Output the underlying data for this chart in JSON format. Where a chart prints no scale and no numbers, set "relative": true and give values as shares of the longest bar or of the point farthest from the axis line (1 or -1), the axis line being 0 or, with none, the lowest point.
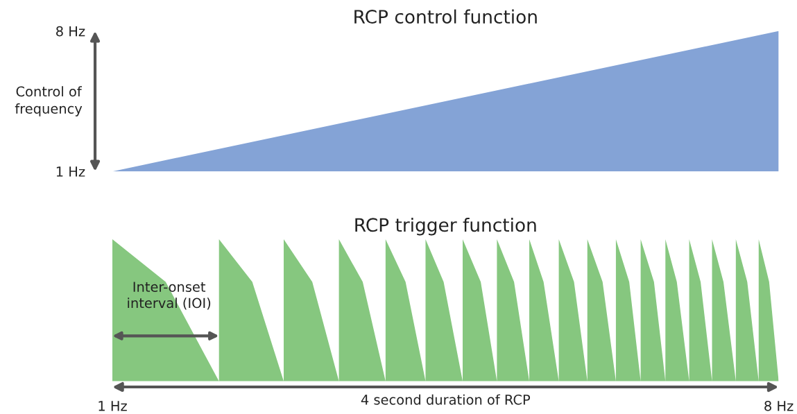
{
  "chart_data": [
    {
      "type": "area",
      "title": "RCP control function",
      "ylabel": "Control of frequency",
      "categories": [
        null,
        null
      ],
      "values": [
        1,
        8
      ],
      "color": "#84a3d6",
      "ylim": [
        1,
        8
      ],
      "yticks": [
        {
          "value": 1,
          "label": "1 Hz"
        },
        {
          "value": 8,
          "label": "8 Hz"
        }
      ],
      "tick_labels": "y"
    },
    {
      "type": "area",
      "title": "RCP trigger function",
      "xlabel": "4 second duration of RCP",
      "relative": true,
      "color": "#86c77f",
      "x": [
        1,
        1,
        1.56,
        2.12,
        2.12,
        2.47,
        2.8,
        2.8,
        3.1,
        3.38,
        3.38,
        3.63,
        3.87,
        3.87,
        4.08,
        4.29,
        4.29,
        4.48,
        4.68,
        4.68,
        4.87,
        5.04,
        5.04,
        5.22,
        5.38,
        5.38,
        5.53,
        5.69,
        5.69,
        5.85,
        5.99,
        5.99,
        6.15,
        6.29,
        6.29,
        6.43,
        6.55,
        6.55,
        6.69,
        6.81,
        6.81,
        6.93,
        7.06,
        7.06,
        7.18,
        7.3,
        7.3,
        7.42,
        7.55,
        7.55,
        7.67,
        7.79,
        7.79,
        7.9,
        8
      ],
      "values": [
        0,
        1,
        0.7,
        0,
        1,
        0.7,
        0,
        1,
        0.7,
        0,
        1,
        0.7,
        0,
        1,
        0.7,
        0,
        1,
        0.7,
        0,
        1,
        0.7,
        0,
        1,
        0.7,
        0,
        1,
        0.7,
        0,
        1,
        0.7,
        0,
        1,
        0.7,
        0,
        1,
        0.7,
        0,
        1,
        0.7,
        0,
        1,
        0.7,
        0,
        1,
        0.7,
        0,
        1,
        0.7,
        0,
        1,
        0.7,
        0,
        1,
        0.7,
        0
      ],
      "xlim": [
        1,
        8
      ],
      "xticks": [
        {
          "value": 1,
          "label": "1 Hz"
        },
        {
          "value": 8,
          "label": "8 Hz"
        }
      ],
      "tick_labels": "x",
      "annotations": [
        "Inter-onset interval (IOI)"
      ]
    }
  ]
}
